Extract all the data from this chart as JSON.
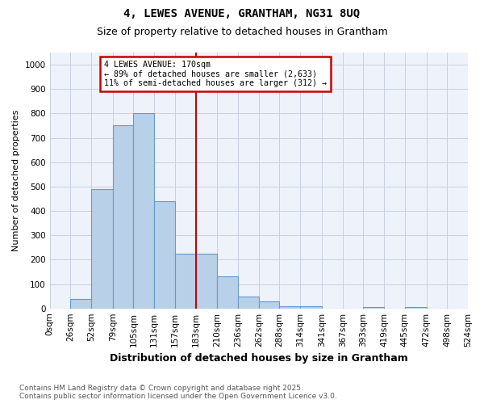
{
  "title_line1": "4, LEWES AVENUE, GRANTHAM, NG31 8UQ",
  "title_line2": "Size of property relative to detached houses in Grantham",
  "xlabel": "Distribution of detached houses by size in Grantham",
  "ylabel": "Number of detached properties",
  "footer_line1": "Contains HM Land Registry data © Crown copyright and database right 2025.",
  "footer_line2": "Contains public sector information licensed under the Open Government Licence v3.0.",
  "annotation_line1": "4 LEWES AVENUE: 170sqm",
  "annotation_line2": "← 89% of detached houses are smaller (2,633)",
  "annotation_line3": "11% of semi-detached houses are larger (312) →",
  "xtick_labels": [
    "0sqm",
    "26sqm",
    "52sqm",
    "79sqm",
    "105sqm",
    "131sqm",
    "157sqm",
    "183sqm",
    "210sqm",
    "236sqm",
    "262sqm",
    "288sqm",
    "314sqm",
    "341sqm",
    "367sqm",
    "393sqm",
    "419sqm",
    "445sqm",
    "472sqm",
    "498sqm",
    "524sqm"
  ],
  "bar_values": [
    0,
    40,
    490,
    750,
    800,
    440,
    225,
    225,
    130,
    50,
    30,
    10,
    8,
    0,
    0,
    5,
    0,
    5,
    0,
    0
  ],
  "bar_color": "#b8d0e8",
  "bar_edge_color": "#6699cc",
  "vline_color": "#cc0000",
  "vline_bin": 6,
  "bg_color": "#ffffff",
  "plot_bg_color": "#eef2fa",
  "grid_color": "#c8d0e0",
  "ylim": [
    0,
    1050
  ],
  "yticks": [
    0,
    100,
    200,
    300,
    400,
    500,
    600,
    700,
    800,
    900,
    1000
  ],
  "annotation_box_color": "#cc0000",
  "annotation_bg": "#ffffff",
  "title_fontsize": 10,
  "subtitle_fontsize": 9,
  "ylabel_fontsize": 8,
  "xlabel_fontsize": 9,
  "tick_fontsize": 7.5,
  "footer_fontsize": 6.5
}
